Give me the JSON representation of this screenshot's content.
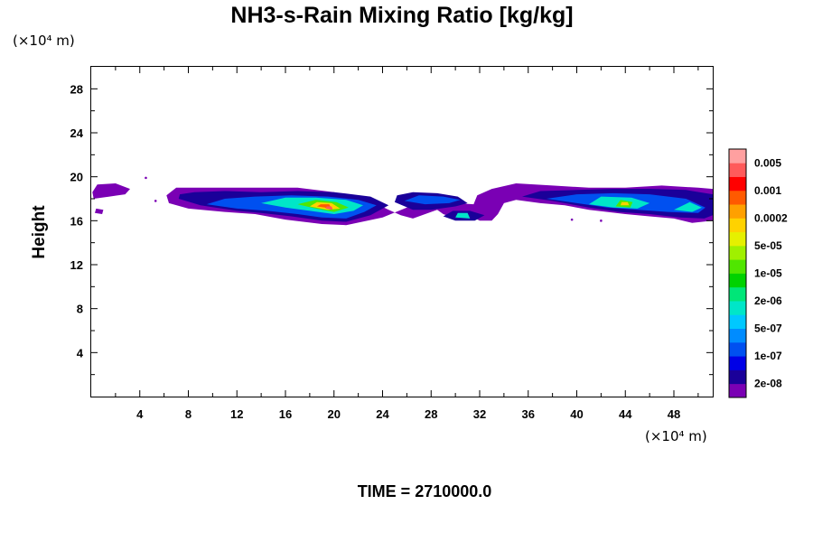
{
  "chart_data": {
    "type": "heatmap",
    "title": "NH3-s-Rain Mixing Ratio [kg/kg]",
    "x_unit": "(×10⁴ m)",
    "y_unit": "(×10⁴ m)",
    "ylabel": "Height",
    "xlim": [
      0,
      51.2
    ],
    "ylim": [
      0,
      30
    ],
    "x_ticks": [
      4,
      8,
      12,
      16,
      20,
      24,
      28,
      32,
      36,
      40,
      44,
      48
    ],
    "y_ticks": [
      4,
      8,
      12,
      16,
      20,
      24,
      28
    ],
    "grid": false,
    "colorbar": {
      "placement": "right",
      "colors": [
        "#7a00b4",
        "#1a0099",
        "#0000e6",
        "#0050f0",
        "#008cff",
        "#00c8ff",
        "#00e6c8",
        "#00e678",
        "#00d200",
        "#50e600",
        "#a0f000",
        "#e6f000",
        "#ffd200",
        "#ffa000",
        "#ff5a00",
        "#ff0000",
        "#ff5a5a",
        "#ffa0a0"
      ],
      "labels": [
        "2e-08",
        "1e-07",
        "5e-07",
        "2e-06",
        "1e-05",
        "5e-05",
        "0.0002",
        "0.001",
        "0.005"
      ]
    },
    "bands": [
      {
        "level": 0,
        "outline": [
          [
            0.2,
            18.0
          ],
          [
            1.5,
            18.2
          ],
          [
            2.8,
            18.4
          ],
          [
            3.2,
            18.9
          ],
          [
            2.0,
            19.4
          ],
          [
            0.5,
            19.3
          ],
          [
            0.1,
            18.6
          ]
        ]
      },
      {
        "level": 0,
        "outline": [
          [
            0.3,
            16.7
          ],
          [
            0.9,
            16.6
          ],
          [
            1.0,
            17.0
          ],
          [
            0.4,
            17.1
          ]
        ]
      },
      {
        "level": 0,
        "outline": [
          [
            6.4,
            17.6
          ],
          [
            8.0,
            17.1
          ],
          [
            11.0,
            16.8
          ],
          [
            13.5,
            16.6
          ],
          [
            16.0,
            16.1
          ],
          [
            19.0,
            15.7
          ],
          [
            21.0,
            15.6
          ],
          [
            24.0,
            16.3
          ],
          [
            26.0,
            17.2
          ],
          [
            28.0,
            17.5
          ],
          [
            30.0,
            17.6
          ],
          [
            31.5,
            17.5
          ],
          [
            31.8,
            18.3
          ],
          [
            33.0,
            18.9
          ],
          [
            35.0,
            19.4
          ],
          [
            38.0,
            19.2
          ],
          [
            41.0,
            19.0
          ],
          [
            44.0,
            19.0
          ],
          [
            47.0,
            19.2
          ],
          [
            50.0,
            19.0
          ],
          [
            51.2,
            18.9
          ],
          [
            51.2,
            16.0
          ],
          [
            49.5,
            15.8
          ],
          [
            48.0,
            16.2
          ],
          [
            46.0,
            16.4
          ],
          [
            44.0,
            16.6
          ],
          [
            41.0,
            17.0
          ],
          [
            39.0,
            17.4
          ],
          [
            37.0,
            17.6
          ],
          [
            35.0,
            17.9
          ],
          [
            34.0,
            17.6
          ],
          [
            33.5,
            16.6
          ],
          [
            33.0,
            16.0
          ],
          [
            32.0,
            16.0
          ],
          [
            31.5,
            16.3
          ],
          [
            30.0,
            16.2
          ],
          [
            29.0,
            16.6
          ],
          [
            28.5,
            17.0
          ],
          [
            28.0,
            16.8
          ],
          [
            26.5,
            16.2
          ],
          [
            25.5,
            16.5
          ],
          [
            24.5,
            17.0
          ],
          [
            23.0,
            17.8
          ],
          [
            20.0,
            18.6
          ],
          [
            17.0,
            19.0
          ],
          [
            13.0,
            19.0
          ],
          [
            9.0,
            19.0
          ],
          [
            7.0,
            19.0
          ],
          [
            6.2,
            18.3
          ]
        ]
      },
      {
        "level": 1,
        "outline": [
          [
            7.2,
            18.0
          ],
          [
            9.0,
            17.4
          ],
          [
            12.0,
            16.9
          ],
          [
            14.0,
            16.7
          ],
          [
            16.5,
            16.4
          ],
          [
            19.0,
            16.0
          ],
          [
            21.0,
            15.9
          ],
          [
            23.0,
            16.5
          ],
          [
            24.5,
            17.4
          ],
          [
            23.0,
            18.2
          ],
          [
            20.0,
            18.6
          ],
          [
            17.0,
            18.7
          ],
          [
            14.0,
            18.6
          ],
          [
            11.0,
            18.7
          ],
          [
            8.5,
            18.6
          ],
          [
            7.3,
            18.4
          ]
        ]
      },
      {
        "level": 1,
        "outline": [
          [
            25.0,
            17.7
          ],
          [
            26.5,
            17.0
          ],
          [
            28.0,
            17.0
          ],
          [
            30.0,
            17.3
          ],
          [
            31.0,
            17.6
          ],
          [
            30.2,
            18.2
          ],
          [
            28.5,
            18.5
          ],
          [
            26.5,
            18.6
          ],
          [
            25.2,
            18.3
          ]
        ]
      },
      {
        "level": 1,
        "outline": [
          [
            29.0,
            16.4
          ],
          [
            30.0,
            16.0
          ],
          [
            31.6,
            16.0
          ],
          [
            32.4,
            16.5
          ],
          [
            31.2,
            16.9
          ],
          [
            29.8,
            16.9
          ]
        ]
      },
      {
        "level": 1,
        "outline": [
          [
            35.5,
            18.2
          ],
          [
            38.0,
            17.8
          ],
          [
            41.0,
            17.2
          ],
          [
            43.5,
            16.8
          ],
          [
            46.0,
            16.6
          ],
          [
            48.5,
            16.3
          ],
          [
            50.5,
            16.2
          ],
          [
            51.2,
            16.5
          ],
          [
            51.2,
            18.4
          ],
          [
            49.0,
            18.8
          ],
          [
            46.0,
            18.9
          ],
          [
            43.0,
            18.9
          ],
          [
            40.0,
            18.8
          ],
          [
            37.0,
            18.7
          ]
        ]
      },
      {
        "level": 3,
        "outline": [
          [
            9.5,
            17.5
          ],
          [
            12.0,
            17.1
          ],
          [
            14.5,
            16.9
          ],
          [
            17.0,
            16.6
          ],
          [
            19.0,
            16.3
          ],
          [
            21.0,
            16.2
          ],
          [
            22.5,
            16.8
          ],
          [
            23.5,
            17.4
          ],
          [
            22.0,
            17.9
          ],
          [
            19.5,
            18.2
          ],
          [
            16.5,
            18.3
          ],
          [
            13.5,
            18.2
          ],
          [
            11.0,
            18.0
          ]
        ]
      },
      {
        "level": 3,
        "outline": [
          [
            25.8,
            17.8
          ],
          [
            27.5,
            17.5
          ],
          [
            29.5,
            17.6
          ],
          [
            30.4,
            17.9
          ],
          [
            29.0,
            18.2
          ],
          [
            27.0,
            18.3
          ]
        ]
      },
      {
        "level": 3,
        "outline": [
          [
            37.5,
            18.0
          ],
          [
            40.0,
            17.6
          ],
          [
            42.5,
            17.2
          ],
          [
            45.0,
            17.0
          ],
          [
            47.5,
            16.8
          ],
          [
            50.0,
            16.7
          ],
          [
            50.6,
            17.2
          ],
          [
            49.0,
            18.0
          ],
          [
            46.0,
            18.4
          ],
          [
            43.0,
            18.5
          ],
          [
            40.0,
            18.4
          ]
        ]
      },
      {
        "level": 6,
        "outline": [
          [
            14.0,
            17.6
          ],
          [
            16.0,
            17.2
          ],
          [
            18.0,
            16.9
          ],
          [
            20.0,
            16.6
          ],
          [
            21.6,
            16.9
          ],
          [
            22.4,
            17.4
          ],
          [
            21.0,
            17.9
          ],
          [
            18.5,
            18.1
          ],
          [
            16.0,
            18.1
          ]
        ]
      },
      {
        "level": 6,
        "outline": [
          [
            41.0,
            17.5
          ],
          [
            43.0,
            17.2
          ],
          [
            45.0,
            17.1
          ],
          [
            46.0,
            17.6
          ],
          [
            44.5,
            18.1
          ],
          [
            42.0,
            18.2
          ]
        ]
      },
      {
        "level": 6,
        "outline": [
          [
            48.0,
            17.0
          ],
          [
            49.5,
            16.8
          ],
          [
            50.3,
            17.2
          ],
          [
            49.3,
            17.7
          ]
        ]
      },
      {
        "level": 6,
        "outline": [
          [
            30.0,
            16.3
          ],
          [
            31.2,
            16.2
          ],
          [
            31.0,
            16.7
          ],
          [
            30.2,
            16.7
          ]
        ]
      },
      {
        "level": 9,
        "outline": [
          [
            17.0,
            17.5
          ],
          [
            18.5,
            17.1
          ],
          [
            20.0,
            16.8
          ],
          [
            21.2,
            17.2
          ],
          [
            20.2,
            17.7
          ],
          [
            18.5,
            17.9
          ]
        ]
      },
      {
        "level": 9,
        "outline": [
          [
            43.2,
            17.3
          ],
          [
            44.4,
            17.2
          ],
          [
            44.6,
            17.7
          ],
          [
            43.6,
            17.9
          ]
        ]
      },
      {
        "level": 12,
        "outline": [
          [
            18.0,
            17.3
          ],
          [
            19.5,
            17.0
          ],
          [
            20.5,
            17.1
          ],
          [
            19.8,
            17.6
          ],
          [
            18.6,
            17.7
          ]
        ]
      },
      {
        "level": 12,
        "outline": [
          [
            43.6,
            17.4
          ],
          [
            44.3,
            17.4
          ],
          [
            44.2,
            17.7
          ],
          [
            43.7,
            17.7
          ]
        ]
      },
      {
        "level": 14,
        "outline": [
          [
            18.6,
            17.3
          ],
          [
            19.8,
            17.1
          ],
          [
            19.6,
            17.5
          ],
          [
            18.9,
            17.5
          ]
        ]
      },
      {
        "level": 16,
        "outline": [
          [
            19.3,
            17.1
          ],
          [
            19.9,
            17.0
          ],
          [
            19.8,
            17.3
          ],
          [
            19.4,
            17.3
          ]
        ]
      }
    ],
    "specks": [
      {
        "level": 0,
        "x": 4.5,
        "y": 19.9
      },
      {
        "level": 0,
        "x": 5.3,
        "y": 17.8
      },
      {
        "level": 0,
        "x": 39.6,
        "y": 16.1
      },
      {
        "level": 0,
        "x": 42.0,
        "y": 16.0
      }
    ]
  },
  "footer": {
    "time_label": "TIME = 2710000.0"
  }
}
